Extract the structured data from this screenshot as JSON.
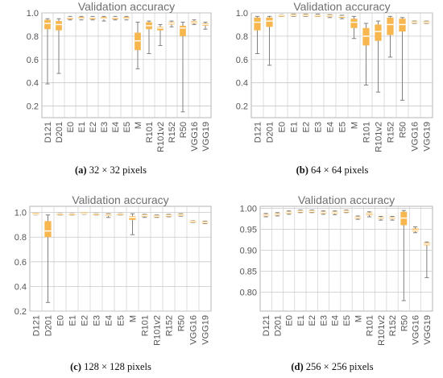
{
  "colors": {
    "box": "#f8b74e",
    "median": "#ffffff",
    "whisker": "#808080",
    "grid": "#c8c8c8",
    "frame": "#b4b4b4"
  },
  "chart_data": [
    {
      "type": "box",
      "title": "Validation accuracy",
      "caption_letter": "(a)",
      "caption_text": " 32 × 32 pixels",
      "ylim": [
        0.1,
        1.0
      ],
      "yticks": [
        0.2,
        0.4,
        0.6,
        0.8,
        1.0
      ],
      "ytick_labels": [
        "0.2",
        "0.4",
        "0.6",
        "0.8",
        "1.0"
      ],
      "categories": [
        "D121",
        "D201",
        "E0",
        "E1",
        "E2",
        "E3",
        "E4",
        "E5",
        "M",
        "R101",
        "R101v2",
        "R152",
        "R50",
        "VGG16",
        "VGG19"
      ],
      "boxes": [
        {
          "min": 0.39,
          "q1": 0.86,
          "median": 0.91,
          "q3": 0.94,
          "max": 0.95
        },
        {
          "min": 0.48,
          "q1": 0.85,
          "median": 0.9,
          "q3": 0.93,
          "max": 0.95
        },
        {
          "min": 0.94,
          "q1": 0.95,
          "median": 0.96,
          "q3": 0.96,
          "max": 0.97
        },
        {
          "min": 0.94,
          "q1": 0.95,
          "median": 0.95,
          "q3": 0.96,
          "max": 0.97
        },
        {
          "min": 0.94,
          "q1": 0.95,
          "median": 0.96,
          "q3": 0.96,
          "max": 0.97
        },
        {
          "min": 0.93,
          "q1": 0.95,
          "median": 0.95,
          "q3": 0.96,
          "max": 0.97
        },
        {
          "min": 0.94,
          "q1": 0.95,
          "median": 0.96,
          "q3": 0.96,
          "max": 0.97
        },
        {
          "min": 0.94,
          "q1": 0.95,
          "median": 0.95,
          "q3": 0.96,
          "max": 0.97
        },
        {
          "min": 0.52,
          "q1": 0.68,
          "median": 0.76,
          "q3": 0.83,
          "max": 0.92
        },
        {
          "min": 0.65,
          "q1": 0.86,
          "median": 0.89,
          "q3": 0.92,
          "max": 0.93
        },
        {
          "min": 0.72,
          "q1": 0.85,
          "median": 0.87,
          "q3": 0.88,
          "max": 0.9
        },
        {
          "min": 0.88,
          "q1": 0.9,
          "median": 0.91,
          "q3": 0.92,
          "max": 0.93
        },
        {
          "min": 0.15,
          "q1": 0.8,
          "median": 0.87,
          "q3": 0.89,
          "max": 0.92
        },
        {
          "min": 0.9,
          "q1": 0.91,
          "median": 0.92,
          "q3": 0.93,
          "max": 0.94
        },
        {
          "min": 0.86,
          "q1": 0.89,
          "median": 0.9,
          "q3": 0.91,
          "max": 0.92
        }
      ]
    },
    {
      "type": "box",
      "title": "Validation accuracy",
      "caption_letter": "(b)",
      "caption_text": " 64 × 64 pixels",
      "ylim": [
        0.1,
        1.0
      ],
      "yticks": [
        0.2,
        0.4,
        0.6,
        0.8,
        1.0
      ],
      "ytick_labels": [
        "0.2",
        "0.4",
        "0.6",
        "0.8",
        "1.0"
      ],
      "categories": [
        "D121",
        "D201",
        "E0",
        "E1",
        "E2",
        "E3",
        "E4",
        "E5",
        "M",
        "R101",
        "R101v2",
        "R152",
        "R50",
        "VGG16",
        "VGG19"
      ],
      "boxes": [
        {
          "min": 0.65,
          "q1": 0.85,
          "median": 0.92,
          "q3": 0.96,
          "max": 0.97
        },
        {
          "min": 0.55,
          "q1": 0.88,
          "median": 0.93,
          "q3": 0.96,
          "max": 0.97
        },
        {
          "min": 0.97,
          "q1": 0.975,
          "median": 0.98,
          "q3": 0.98,
          "max": 0.985
        },
        {
          "min": 0.97,
          "q1": 0.975,
          "median": 0.98,
          "q3": 0.985,
          "max": 0.99
        },
        {
          "min": 0.97,
          "q1": 0.975,
          "median": 0.98,
          "q3": 0.985,
          "max": 0.99
        },
        {
          "min": 0.97,
          "q1": 0.975,
          "median": 0.98,
          "q3": 0.98,
          "max": 0.99
        },
        {
          "min": 0.96,
          "q1": 0.97,
          "median": 0.975,
          "q3": 0.98,
          "max": 0.985
        },
        {
          "min": 0.95,
          "q1": 0.96,
          "median": 0.97,
          "q3": 0.975,
          "max": 0.98
        },
        {
          "min": 0.78,
          "q1": 0.87,
          "median": 0.92,
          "q3": 0.95,
          "max": 0.97
        },
        {
          "min": 0.38,
          "q1": 0.72,
          "median": 0.8,
          "q3": 0.87,
          "max": 0.91
        },
        {
          "min": 0.32,
          "q1": 0.76,
          "median": 0.84,
          "q3": 0.9,
          "max": 0.93
        },
        {
          "min": 0.62,
          "q1": 0.81,
          "median": 0.9,
          "q3": 0.96,
          "max": 0.97
        },
        {
          "min": 0.25,
          "q1": 0.84,
          "median": 0.9,
          "q3": 0.95,
          "max": 0.96
        },
        {
          "min": 0.91,
          "q1": 0.915,
          "median": 0.92,
          "q3": 0.925,
          "max": 0.93
        },
        {
          "min": 0.91,
          "q1": 0.915,
          "median": 0.92,
          "q3": 0.925,
          "max": 0.93
        }
      ]
    },
    {
      "type": "box",
      "title": "Validation accuracy",
      "caption_letter": "(c)",
      "caption_text": " 128 × 128 pixels",
      "ylim": [
        0.2,
        1.05
      ],
      "yticks": [
        0.2,
        0.4,
        0.6,
        0.8,
        1.0
      ],
      "ytick_labels": [
        "0.2",
        "0.4",
        "0.6",
        "0.8",
        "1.0"
      ],
      "categories": [
        "D121",
        "D201",
        "E0",
        "E1",
        "E2",
        "E3",
        "E4",
        "E5",
        "M",
        "R101",
        "R101v2",
        "R152",
        "R50",
        "VGG16",
        "VGG19"
      ],
      "boxes": [
        {
          "min": 0.98,
          "q1": 0.985,
          "median": 0.985,
          "q3": 0.99,
          "max": 0.99
        },
        {
          "min": 0.27,
          "q1": 0.8,
          "median": 0.85,
          "q3": 0.93,
          "max": 0.98
        },
        {
          "min": 0.98,
          "q1": 0.985,
          "median": 0.99,
          "q3": 0.99,
          "max": 0.995
        },
        {
          "min": 0.98,
          "q1": 0.985,
          "median": 0.99,
          "q3": 0.99,
          "max": 0.995
        },
        {
          "min": 0.985,
          "q1": 0.99,
          "median": 0.99,
          "q3": 0.995,
          "max": 0.995
        },
        {
          "min": 0.98,
          "q1": 0.985,
          "median": 0.99,
          "q3": 0.99,
          "max": 0.995
        },
        {
          "min": 0.96,
          "q1": 0.975,
          "median": 0.98,
          "q3": 0.985,
          "max": 0.99
        },
        {
          "min": 0.98,
          "q1": 0.985,
          "median": 0.99,
          "q3": 0.99,
          "max": 0.995
        },
        {
          "min": 0.82,
          "q1": 0.94,
          "median": 0.96,
          "q3": 0.97,
          "max": 0.99
        },
        {
          "min": 0.96,
          "q1": 0.97,
          "median": 0.975,
          "q3": 0.98,
          "max": 0.985
        },
        {
          "min": 0.96,
          "q1": 0.965,
          "median": 0.97,
          "q3": 0.975,
          "max": 0.98
        },
        {
          "min": 0.965,
          "q1": 0.97,
          "median": 0.975,
          "q3": 0.98,
          "max": 0.985
        },
        {
          "min": 0.97,
          "q1": 0.975,
          "median": 0.98,
          "q3": 0.985,
          "max": 0.99
        },
        {
          "min": 0.92,
          "q1": 0.925,
          "median": 0.93,
          "q3": 0.93,
          "max": 0.935
        },
        {
          "min": 0.91,
          "q1": 0.915,
          "median": 0.92,
          "q3": 0.925,
          "max": 0.93
        }
      ]
    },
    {
      "type": "box",
      "title": "Validation accuracy",
      "caption_letter": "(d)",
      "caption_text": " 256 × 256 pixels",
      "ylim": [
        0.755,
        1.005
      ],
      "yticks": [
        0.8,
        0.85,
        0.9,
        0.95,
        1.0
      ],
      "ytick_labels": [
        "0.80",
        "0.85",
        "0.90",
        "0.95",
        "1.00"
      ],
      "categories": [
        "D121",
        "D201",
        "E0",
        "E1",
        "E2",
        "E3",
        "E4",
        "E5",
        "M",
        "R101",
        "R101v2",
        "R152",
        "R50",
        "VGG16",
        "VGG19"
      ],
      "boxes": [
        {
          "min": 0.98,
          "q1": 0.982,
          "median": 0.984,
          "q3": 0.986,
          "max": 0.988
        },
        {
          "min": 0.982,
          "q1": 0.984,
          "median": 0.986,
          "q3": 0.988,
          "max": 0.99
        },
        {
          "min": 0.986,
          "q1": 0.988,
          "median": 0.99,
          "q3": 0.992,
          "max": 0.994
        },
        {
          "min": 0.99,
          "q1": 0.992,
          "median": 0.993,
          "q3": 0.994,
          "max": 0.996
        },
        {
          "min": 0.99,
          "q1": 0.992,
          "median": 0.993,
          "q3": 0.994,
          "max": 0.996
        },
        {
          "min": 0.986,
          "q1": 0.988,
          "median": 0.99,
          "q3": 0.992,
          "max": 0.994
        },
        {
          "min": 0.985,
          "q1": 0.988,
          "median": 0.99,
          "q3": 0.992,
          "max": 0.994
        },
        {
          "min": 0.99,
          "q1": 0.992,
          "median": 0.993,
          "q3": 0.994,
          "max": 0.996
        },
        {
          "min": 0.974,
          "q1": 0.976,
          "median": 0.978,
          "q3": 0.98,
          "max": 0.982
        },
        {
          "min": 0.98,
          "q1": 0.984,
          "median": 0.987,
          "q3": 0.99,
          "max": 0.992
        },
        {
          "min": 0.972,
          "q1": 0.975,
          "median": 0.977,
          "q3": 0.979,
          "max": 0.981
        },
        {
          "min": 0.972,
          "q1": 0.975,
          "median": 0.977,
          "q3": 0.979,
          "max": 0.981
        },
        {
          "min": 0.78,
          "q1": 0.96,
          "median": 0.977,
          "q3": 0.992,
          "max": 0.995
        },
        {
          "min": 0.942,
          "q1": 0.945,
          "median": 0.948,
          "q3": 0.952,
          "max": 0.956
        },
        {
          "min": 0.835,
          "q1": 0.912,
          "median": 0.915,
          "q3": 0.918,
          "max": 0.92
        }
      ]
    }
  ]
}
